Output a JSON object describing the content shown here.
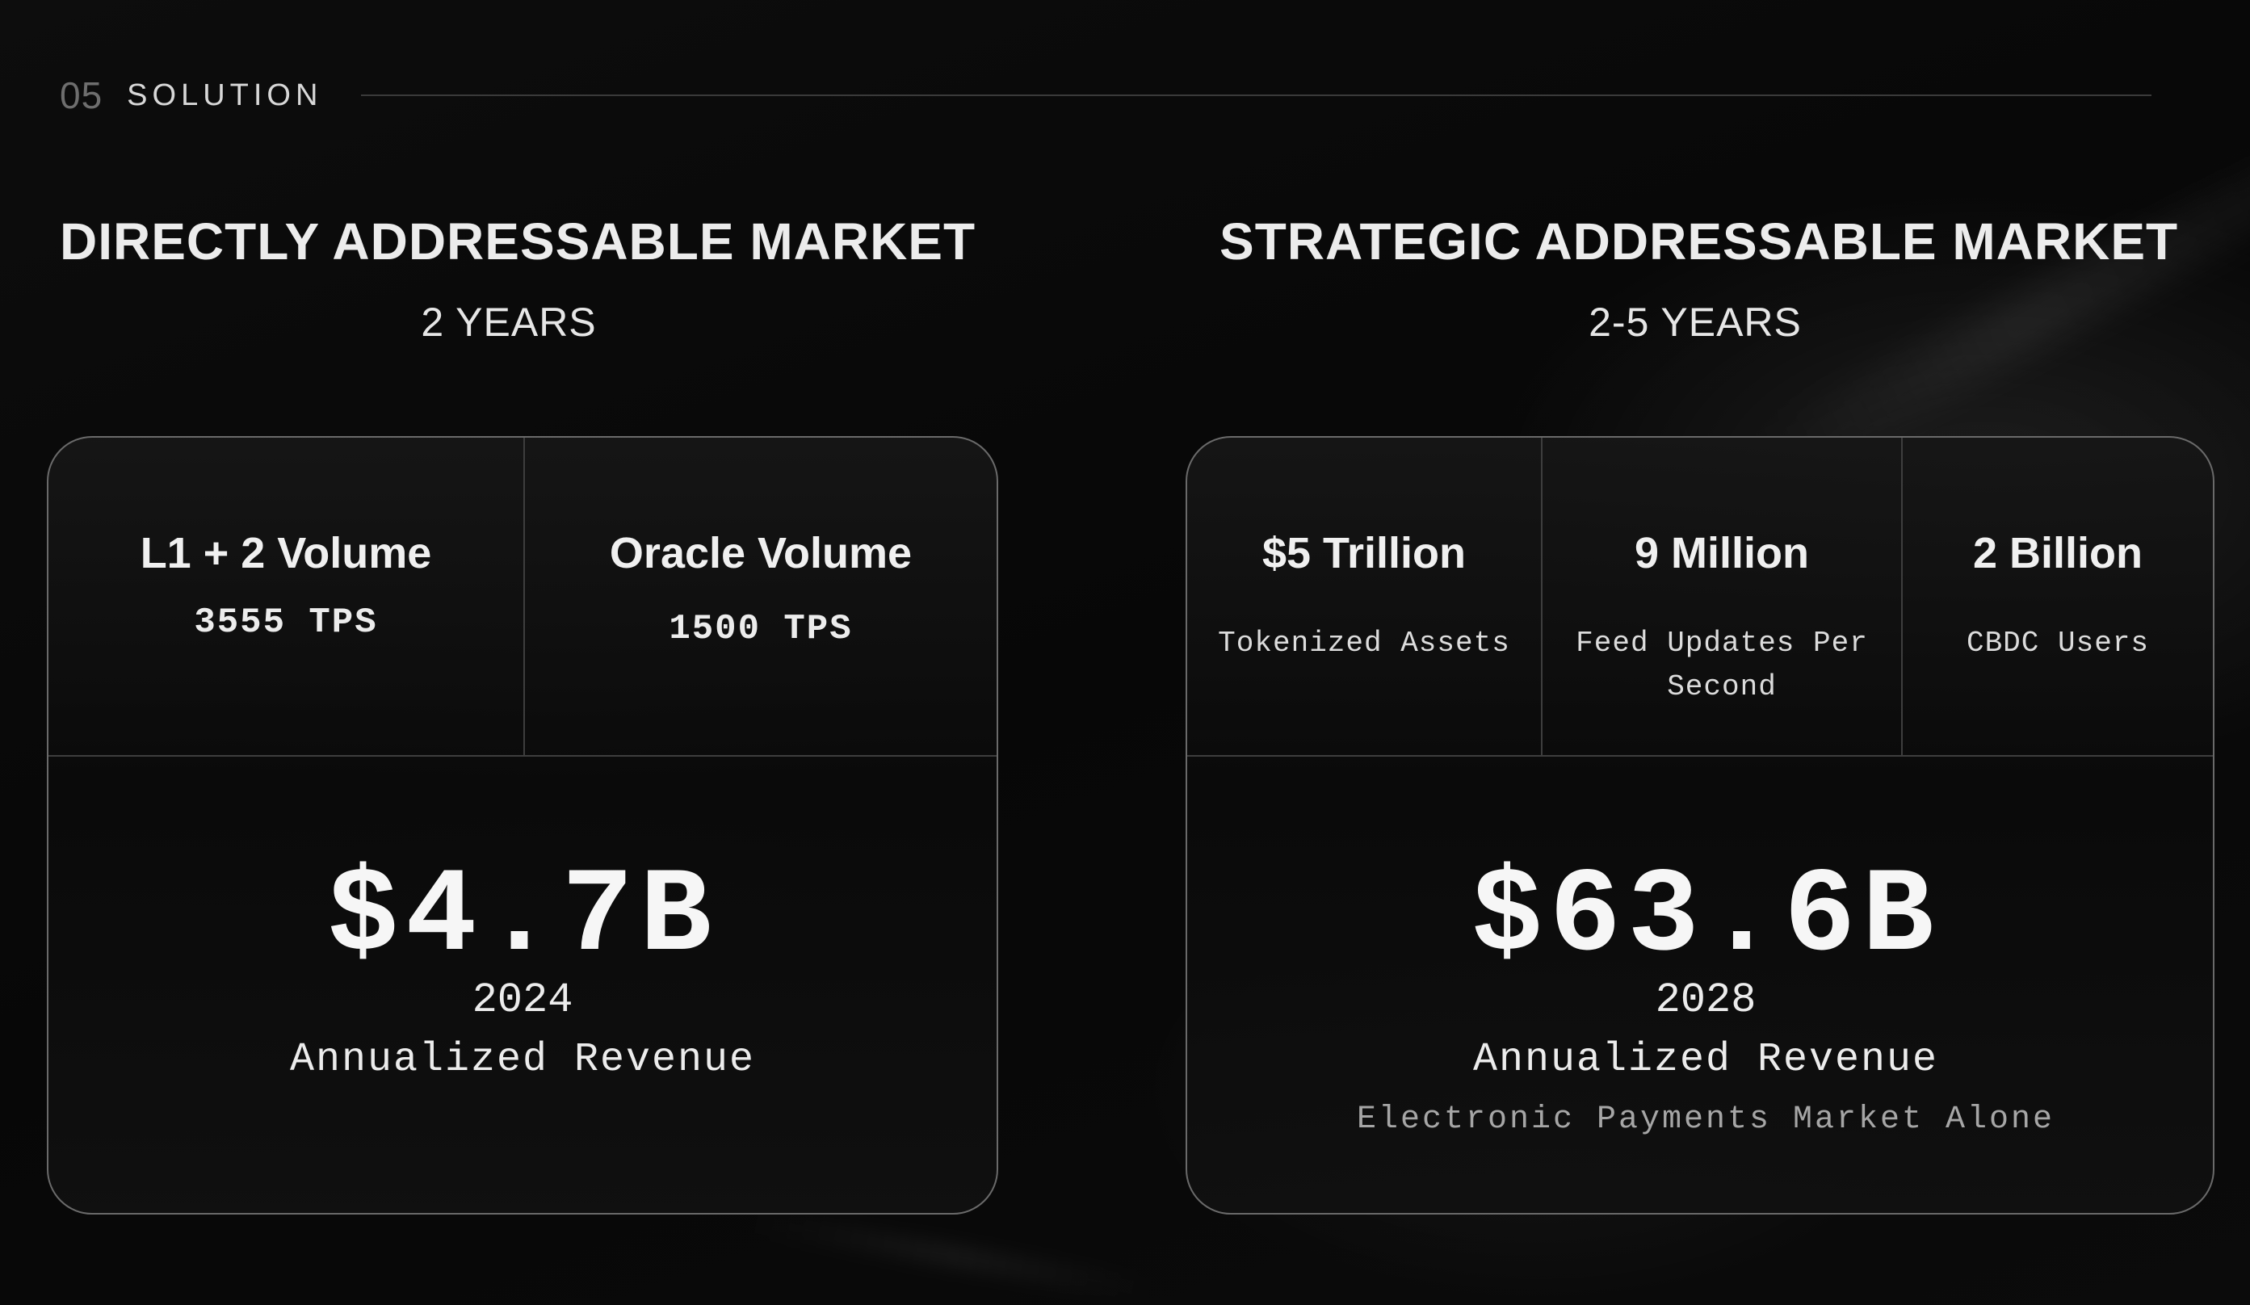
{
  "section": {
    "number": "05",
    "title": "SOLUTION"
  },
  "direct_market": {
    "heading": "DIRECTLY ADDRESSABLE MARKET",
    "timeframe": "2 YEARS",
    "metrics": [
      {
        "title": "L1 + 2 Volume",
        "value": "3555 TPS"
      },
      {
        "title": "Oracle Volume",
        "value": "1500 TPS"
      }
    ],
    "revenue": {
      "value": "$4.7B",
      "year": "2024",
      "label": "Annualized Revenue"
    }
  },
  "strategic_market": {
    "heading": "STRATEGIC ADDRESSABLE MARKET",
    "timeframe": "2-5 YEARS",
    "metrics": [
      {
        "title": "$5 Trillion",
        "desc": "Tokenized Assets"
      },
      {
        "title": "9 Million",
        "desc": "Feed Updates Per Second"
      },
      {
        "title": "2 Billion",
        "desc": "CBDC Users"
      }
    ],
    "revenue": {
      "value": "$63.6B",
      "year": "2028",
      "label": "Annualized Revenue",
      "note": "Electronic Payments Market Alone"
    }
  }
}
